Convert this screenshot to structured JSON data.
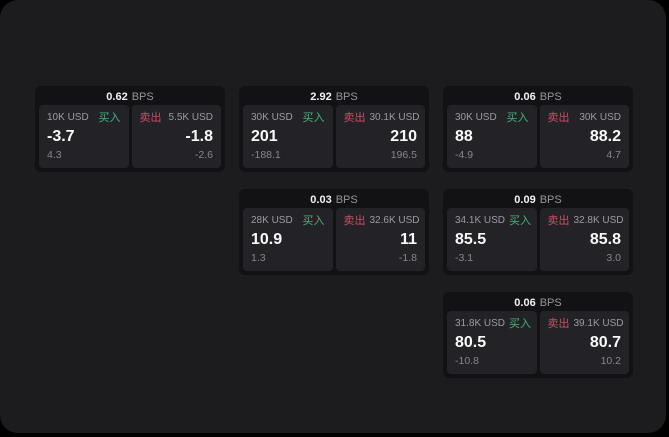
{
  "labels": {
    "bps_unit": "BPS",
    "buy": "买入",
    "sell": "卖出"
  },
  "colors": {
    "background": "#000000",
    "surface": "#1c1c1e",
    "card": "#121214",
    "panel": "#232327",
    "buy_green": "#43b478",
    "sell_red": "#c55066"
  },
  "cards": [
    {
      "bps": "0.62",
      "col": 1,
      "row": 1,
      "buy": {
        "amount": "10K USD",
        "value": "-3.7",
        "sub": "4.3"
      },
      "sell": {
        "amount": "5.5K USD",
        "value": "-1.8",
        "sub": "-2.6"
      }
    },
    {
      "bps": "2.92",
      "col": 2,
      "row": 1,
      "buy": {
        "amount": "30K USD",
        "value": "201",
        "sub": "-188.1"
      },
      "sell": {
        "amount": "30.1K USD",
        "value": "210",
        "sub": "196.5"
      }
    },
    {
      "bps": "0.06",
      "col": 3,
      "row": 1,
      "buy": {
        "amount": "30K USD",
        "value": "88",
        "sub": "-4.9"
      },
      "sell": {
        "amount": "30K USD",
        "value": "88.2",
        "sub": "4.7"
      }
    },
    {
      "bps": "0.03",
      "col": 2,
      "row": 2,
      "buy": {
        "amount": "28K USD",
        "value": "10.9",
        "sub": "1.3"
      },
      "sell": {
        "amount": "32.6K USD",
        "value": "11",
        "sub": "-1.8"
      }
    },
    {
      "bps": "0.09",
      "col": 3,
      "row": 2,
      "buy": {
        "amount": "34.1K USD",
        "value": "85.5",
        "sub": "-3.1"
      },
      "sell": {
        "amount": "32.8K USD",
        "value": "85.8",
        "sub": "3.0"
      }
    },
    {
      "bps": "0.06",
      "col": 3,
      "row": 3,
      "buy": {
        "amount": "31.8K USD",
        "value": "80.5",
        "sub": "-10.8"
      },
      "sell": {
        "amount": "39.1K USD",
        "value": "80.7",
        "sub": "10.2"
      }
    }
  ]
}
